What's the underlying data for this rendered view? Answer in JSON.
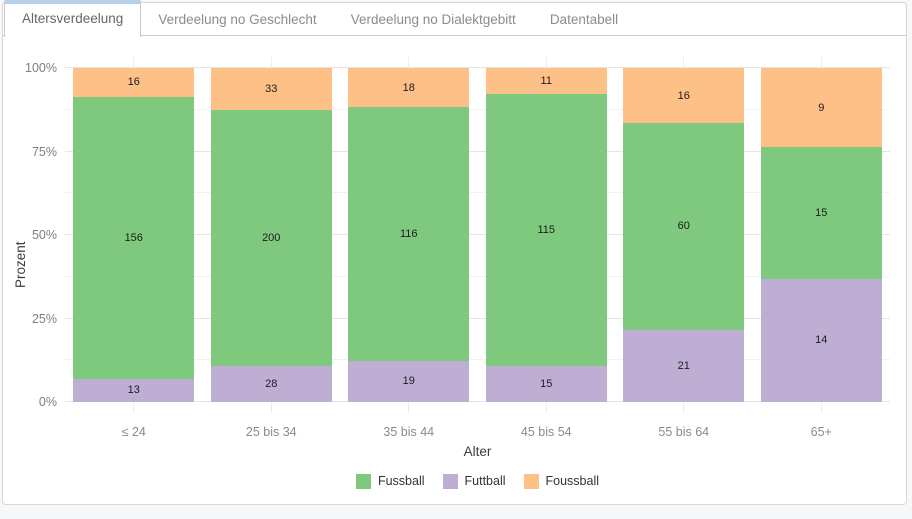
{
  "tabs": [
    {
      "label": "Altersverdeelung",
      "active": true
    },
    {
      "label": "Verdeelung no Geschlecht",
      "active": false
    },
    {
      "label": "Verdeelung no Dialektgebitt",
      "active": false
    },
    {
      "label": "Datentabell",
      "active": false
    }
  ],
  "chart_data": {
    "type": "bar",
    "variant": "stacked-percent",
    "title": "",
    "xlabel": "Alter",
    "ylabel": "Prozent",
    "categories": [
      "≤ 24",
      "25 bis 34",
      "35 bis 44",
      "45 bis 54",
      "55 bis 64",
      "65+"
    ],
    "series": [
      {
        "name": "Fussball",
        "color": "#7fc97f",
        "values": [
          156,
          200,
          116,
          115,
          60,
          15
        ]
      },
      {
        "name": "Futtball",
        "color": "#beaed4",
        "values": [
          13,
          28,
          19,
          15,
          21,
          14
        ]
      },
      {
        "name": "Foussball",
        "color": "#fdc086",
        "values": [
          16,
          33,
          18,
          11,
          16,
          9
        ]
      }
    ],
    "stack_order_bottom_to_top": [
      "Futtball",
      "Fussball",
      "Foussball"
    ],
    "y_ticks": [
      {
        "label": "0%",
        "value": 0
      },
      {
        "label": "25%",
        "value": 25
      },
      {
        "label": "50%",
        "value": 50
      },
      {
        "label": "75%",
        "value": 75
      },
      {
        "label": "100%",
        "value": 100
      }
    ],
    "ylim": [
      0,
      100
    ],
    "grid": true,
    "legend_position": "bottom"
  }
}
